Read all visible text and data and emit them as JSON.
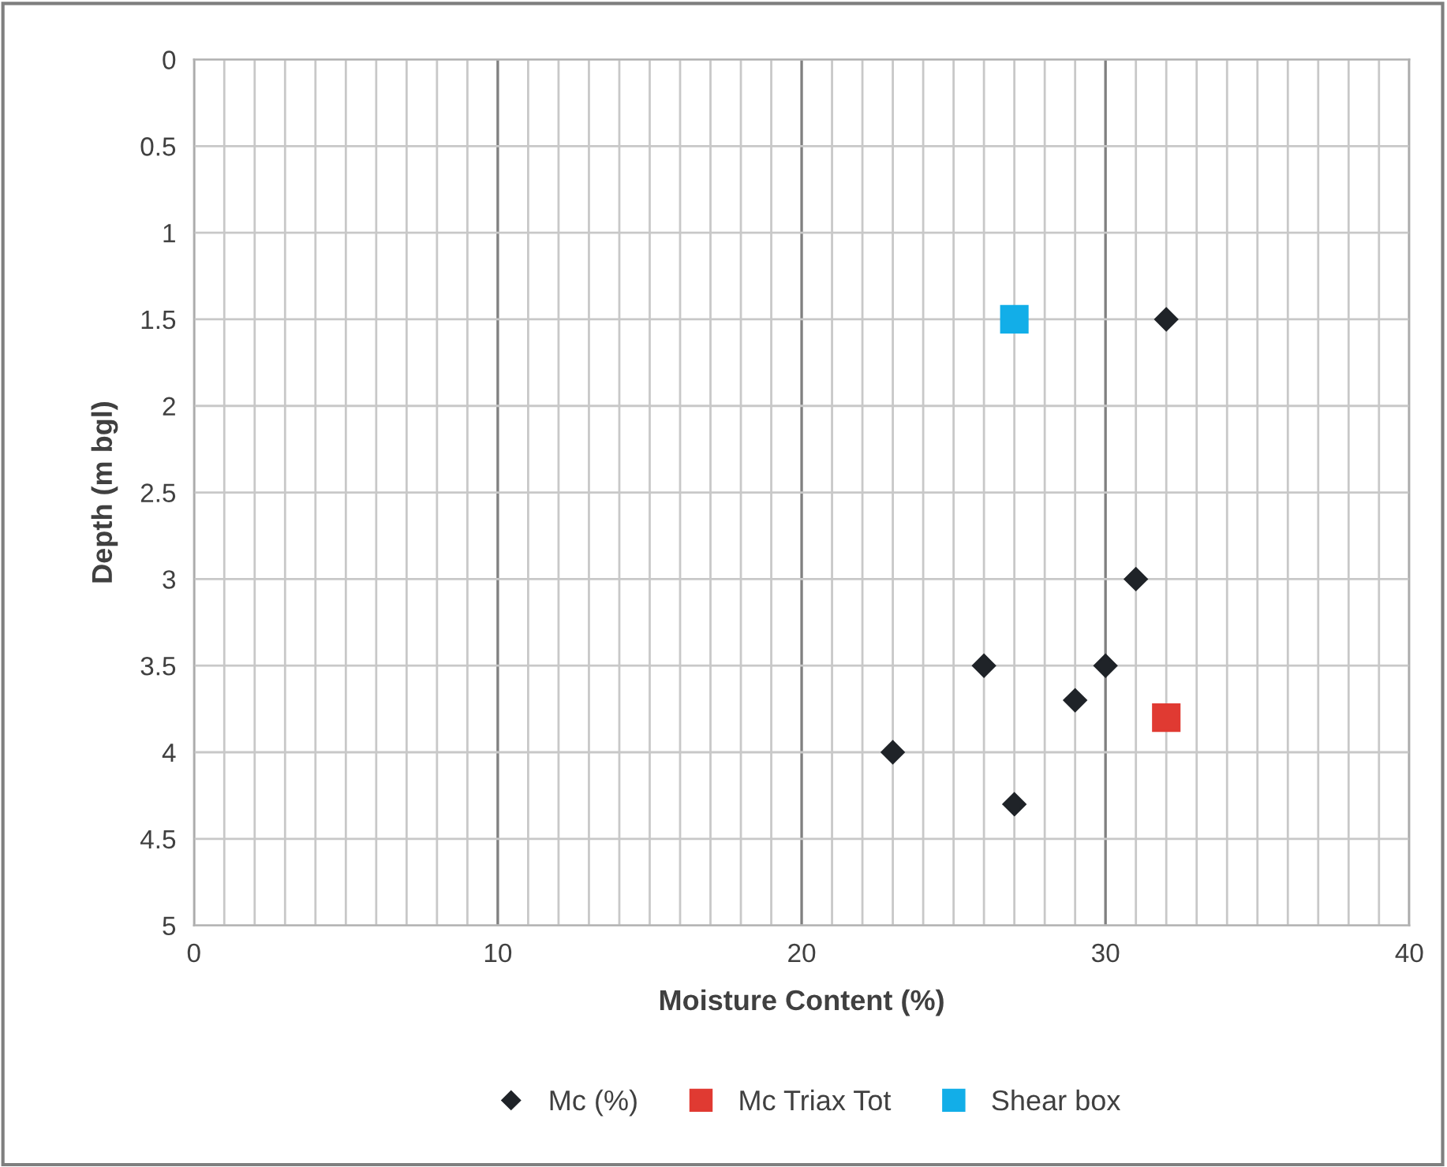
{
  "chart_data": {
    "type": "scatter",
    "xlabel": "Moisture Content (%)",
    "ylabel": "Depth (m bgl)",
    "xlim": [
      0,
      40
    ],
    "ylim": [
      5,
      0
    ],
    "xticks": [
      0,
      {
        "value": 1,
        "label": null
      },
      {
        "value": 2,
        "label": null
      },
      {
        "value": 3,
        "label": null
      },
      {
        "value": 4,
        "label": null
      },
      {
        "value": 5,
        "label": null
      },
      {
        "value": 6,
        "label": null
      },
      {
        "value": 7,
        "label": null
      },
      {
        "value": 8,
        "label": null
      },
      {
        "value": 9,
        "label": null
      },
      10,
      {
        "value": 11,
        "label": null
      },
      {
        "value": 12,
        "label": null
      },
      {
        "value": 13,
        "label": null
      },
      {
        "value": 14,
        "label": null
      },
      {
        "value": 15,
        "label": null
      },
      {
        "value": 16,
        "label": null
      },
      {
        "value": 17,
        "label": null
      },
      {
        "value": 18,
        "label": null
      },
      {
        "value": 19,
        "label": null
      },
      20,
      {
        "value": 21,
        "label": null
      },
      {
        "value": 22,
        "label": null
      },
      {
        "value": 23,
        "label": null
      },
      {
        "value": 24,
        "label": null
      },
      {
        "value": 25,
        "label": null
      },
      {
        "value": 26,
        "label": null
      },
      {
        "value": 27,
        "label": null
      },
      {
        "value": 28,
        "label": null
      },
      {
        "value": 29,
        "label": null
      },
      30,
      {
        "value": 31,
        "label": null
      },
      {
        "value": 32,
        "label": null
      },
      {
        "value": 33,
        "label": null
      },
      {
        "value": 34,
        "label": null
      },
      {
        "value": 35,
        "label": null
      },
      {
        "value": 36,
        "label": null
      },
      {
        "value": 37,
        "label": null
      },
      {
        "value": 38,
        "label": null
      },
      {
        "value": 39,
        "label": null
      },
      40
    ],
    "yticks": [
      0,
      0.5,
      1,
      1.5,
      2,
      2.5,
      3,
      3.5,
      4,
      4.5,
      5
    ],
    "grid": true,
    "legend": "bottom",
    "series": [
      {
        "name": "Mc (%)",
        "color": "#1f2328",
        "marker": "diamond",
        "x": [
          32,
          31,
          26,
          30,
          29,
          23,
          27
        ],
        "values": [
          1.5,
          3,
          3.5,
          3.5,
          3.7,
          4,
          4.3
        ]
      },
      {
        "name": "Mc Triax Tot",
        "color": "#e03a32",
        "marker": "square",
        "x": [
          32
        ],
        "values": [
          3.8
        ]
      },
      {
        "name": "Shear box",
        "color": "#12aee8",
        "marker": "square",
        "x": [
          27
        ],
        "values": [
          1.5
        ]
      }
    ]
  }
}
